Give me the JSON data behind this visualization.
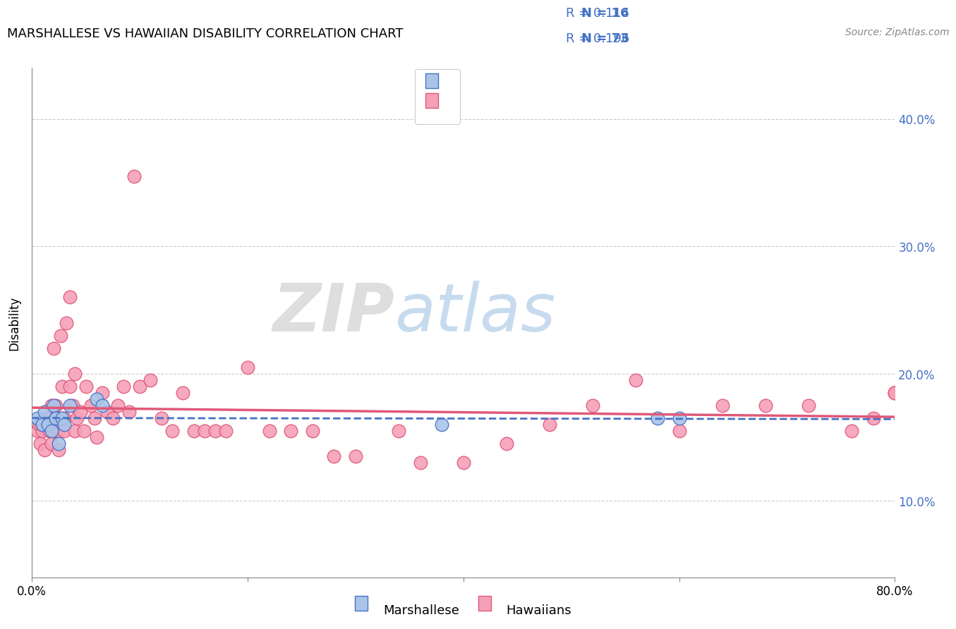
{
  "title": "MARSHALLESE VS HAWAIIAN DISABILITY CORRELATION CHART",
  "source": "Source: ZipAtlas.com",
  "ylabel": "Disability",
  "xlabel": "",
  "xlim": [
    0.0,
    0.8
  ],
  "ylim": [
    0.04,
    0.44
  ],
  "yticks": [
    0.1,
    0.2,
    0.3,
    0.4
  ],
  "ytick_labels": [
    "10.0%",
    "20.0%",
    "30.0%",
    "40.0%"
  ],
  "xticks": [
    0.0,
    0.2,
    0.4,
    0.6,
    0.8
  ],
  "xtick_labels": [
    "0.0%",
    "",
    "",
    "",
    "80.0%"
  ],
  "legend_r1": "0.114",
  "legend_n1": "16",
  "legend_r2": "0.196",
  "legend_n2": "73",
  "marshallese_color": "#aac4e8",
  "hawaiian_color": "#f5a0b8",
  "marshallese_line_color": "#4472c4",
  "hawaiian_line_color": "#e05878",
  "watermark_zip": "ZIP",
  "watermark_atlas": "atlas",
  "marshallese_x": [
    0.005,
    0.01,
    0.012,
    0.015,
    0.018,
    0.02,
    0.022,
    0.025,
    0.028,
    0.03,
    0.035,
    0.06,
    0.065,
    0.38,
    0.58,
    0.6
  ],
  "marshallese_y": [
    0.165,
    0.16,
    0.17,
    0.16,
    0.155,
    0.175,
    0.165,
    0.145,
    0.165,
    0.16,
    0.175,
    0.18,
    0.175,
    0.16,
    0.165,
    0.165
  ],
  "hawaiian_x": [
    0.005,
    0.007,
    0.008,
    0.01,
    0.01,
    0.012,
    0.014,
    0.015,
    0.016,
    0.018,
    0.018,
    0.02,
    0.02,
    0.022,
    0.022,
    0.024,
    0.025,
    0.025,
    0.027,
    0.028,
    0.03,
    0.03,
    0.032,
    0.035,
    0.035,
    0.038,
    0.04,
    0.04,
    0.042,
    0.045,
    0.048,
    0.05,
    0.055,
    0.058,
    0.06,
    0.065,
    0.07,
    0.075,
    0.08,
    0.085,
    0.09,
    0.095,
    0.1,
    0.11,
    0.12,
    0.13,
    0.14,
    0.15,
    0.16,
    0.17,
    0.18,
    0.2,
    0.22,
    0.24,
    0.26,
    0.28,
    0.3,
    0.34,
    0.36,
    0.4,
    0.44,
    0.48,
    0.52,
    0.56,
    0.6,
    0.64,
    0.68,
    0.72,
    0.76,
    0.78,
    0.8,
    0.8,
    0.8
  ],
  "hawaiian_y": [
    0.155,
    0.16,
    0.145,
    0.155,
    0.16,
    0.14,
    0.165,
    0.16,
    0.155,
    0.145,
    0.175,
    0.155,
    0.22,
    0.16,
    0.175,
    0.165,
    0.14,
    0.155,
    0.23,
    0.19,
    0.155,
    0.165,
    0.24,
    0.19,
    0.26,
    0.175,
    0.155,
    0.2,
    0.165,
    0.17,
    0.155,
    0.19,
    0.175,
    0.165,
    0.15,
    0.185,
    0.17,
    0.165,
    0.175,
    0.19,
    0.17,
    0.355,
    0.19,
    0.195,
    0.165,
    0.155,
    0.185,
    0.155,
    0.155,
    0.155,
    0.155,
    0.205,
    0.155,
    0.155,
    0.155,
    0.135,
    0.135,
    0.155,
    0.13,
    0.13,
    0.145,
    0.16,
    0.175,
    0.195,
    0.155,
    0.175,
    0.175,
    0.175,
    0.155,
    0.165,
    0.185,
    0.185,
    0.185
  ]
}
